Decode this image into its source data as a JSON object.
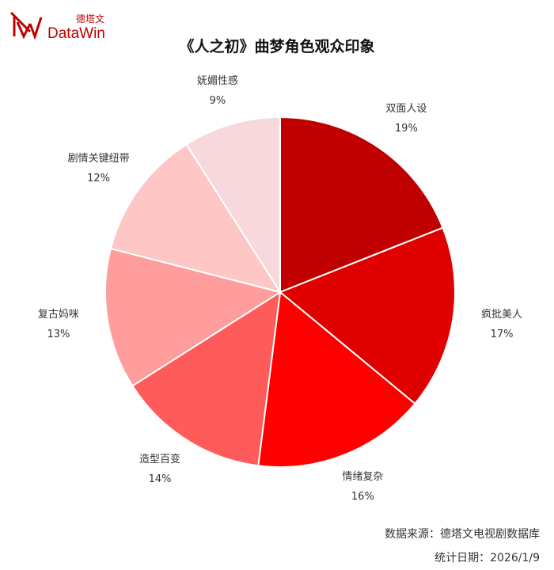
{
  "logo": {
    "cn": "德塔文",
    "en": "DataWin"
  },
  "chart_data": {
    "type": "pie",
    "title": "《人之初》曲梦角色观众印象",
    "start": "top",
    "direction": "clockwise",
    "categories": [
      "双面人设",
      "疯批美人",
      "情绪复杂",
      "造型百变",
      "复古妈咪",
      "剧情关键纽带",
      "妩媚性感"
    ],
    "values": [
      19,
      17,
      16,
      14,
      13,
      12,
      9
    ],
    "value_labels": [
      "19%",
      "17%",
      "16%",
      "14%",
      "13%",
      "12%",
      "9%"
    ],
    "colors": [
      "#c00000",
      "#e00000",
      "#ff0000",
      "#ff5b5b",
      "#ff9c9c",
      "#ffc6c6",
      "#f7d8dc"
    ]
  },
  "footer": {
    "source": "数据来源：德塔文电视剧数据库",
    "date": "统计日期：2026/1/9"
  }
}
